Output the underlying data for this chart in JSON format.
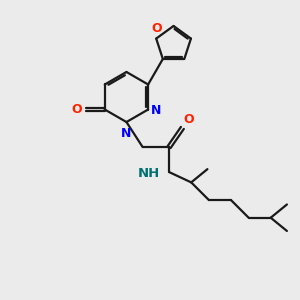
{
  "bg_color": "#ebebeb",
  "bond_color": "#1a1a1a",
  "N_color": "#0000ff",
  "O_color": "#ff2200",
  "NH_color": "#007070",
  "line_width": 1.6,
  "figsize": [
    3.0,
    3.0
  ],
  "dpi": 100,
  "xlim": [
    0,
    10
  ],
  "ylim": [
    0,
    10
  ]
}
